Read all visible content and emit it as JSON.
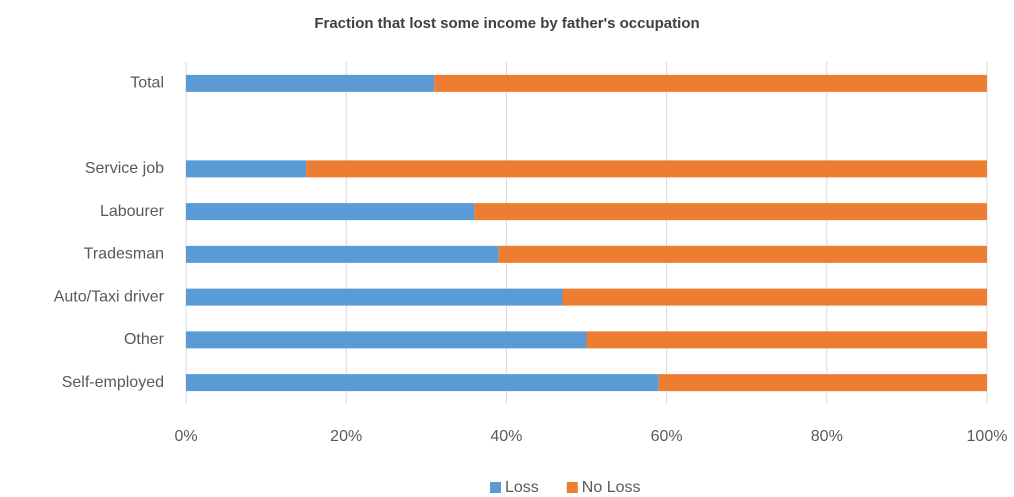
{
  "chart_data": {
    "type": "stacked-bar-horizontal",
    "title": "Fraction that lost some income by father's occupation",
    "categories": [
      "Total",
      null,
      "Service job",
      "Labourer",
      "Tradesman",
      "Auto/Taxi driver",
      "Other",
      "Self-employed"
    ],
    "series": [
      {
        "name": "Loss",
        "color": "#5b9bd5",
        "values": [
          31,
          null,
          15,
          36,
          39,
          47,
          50,
          59
        ]
      },
      {
        "name": "No Loss",
        "color": "#ed7d31",
        "values": [
          69,
          null,
          85,
          64,
          61,
          53,
          50,
          41
        ]
      }
    ],
    "xlim": [
      0,
      100
    ],
    "xticks": [
      {
        "value": 0,
        "label": "0%"
      },
      {
        "value": 20,
        "label": "20%"
      },
      {
        "value": 40,
        "label": "40%"
      },
      {
        "value": 60,
        "label": "60%"
      },
      {
        "value": 80,
        "label": "80%"
      },
      {
        "value": 100,
        "label": "100%"
      }
    ],
    "grid": true,
    "legend": "bottom"
  }
}
